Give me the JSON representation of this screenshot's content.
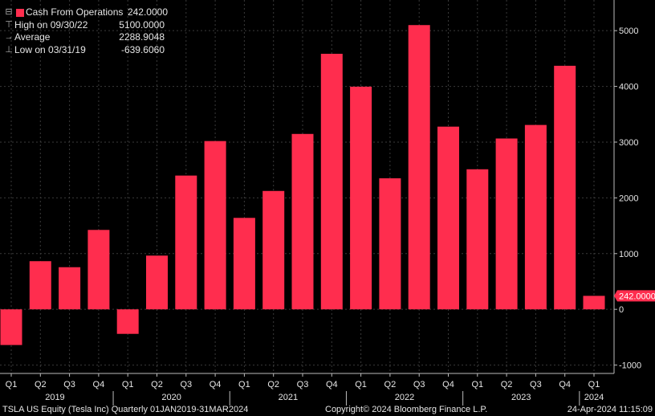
{
  "legend": {
    "series_label": "Cash From Operations",
    "series_value": "242.0000",
    "high_label": "High on 09/30/22",
    "high_value": "5100.0000",
    "avg_label": "Average",
    "avg_value": "2288.9048",
    "low_label": "Low on 03/31/19",
    "low_value": "-639.6060"
  },
  "last_value_tag": "242.0000",
  "footer": {
    "left": "TSLA US Equity (Tesla Inc)  Quarterly 01JAN2019-31MAR2024",
    "center": "Copyright© 2024 Bloomberg Finance L.P.",
    "right": "24-Apr-2024 11:15:09"
  },
  "colors": {
    "bar": "#ff2d4e",
    "grid": "#3a3a3a",
    "background": "#000000"
  },
  "chart_data": {
    "type": "bar",
    "series": [
      {
        "name": "Cash From Operations",
        "values": [
          -640,
          864,
          756,
          1425,
          -440,
          964,
          2400,
          3019,
          1641,
          2124,
          3147,
          4585,
          3995,
          2351,
          5100,
          3278,
          2513,
          3065,
          3308,
          4370,
          242
        ]
      }
    ],
    "categories": [
      "Q1",
      "Q2",
      "Q3",
      "Q4",
      "Q1",
      "Q2",
      "Q3",
      "Q4",
      "Q1",
      "Q2",
      "Q3",
      "Q4",
      "Q1",
      "Q2",
      "Q3",
      "Q4",
      "Q1",
      "Q2",
      "Q3",
      "Q4",
      "Q1"
    ],
    "years": [
      "2019",
      "2020",
      "2021",
      "2022",
      "2023",
      "2024"
    ],
    "yticks": [
      "-1000",
      "0",
      "1000",
      "2000",
      "3000",
      "4000",
      "5000"
    ],
    "ylim": [
      -1150,
      5550
    ],
    "grid": true
  }
}
